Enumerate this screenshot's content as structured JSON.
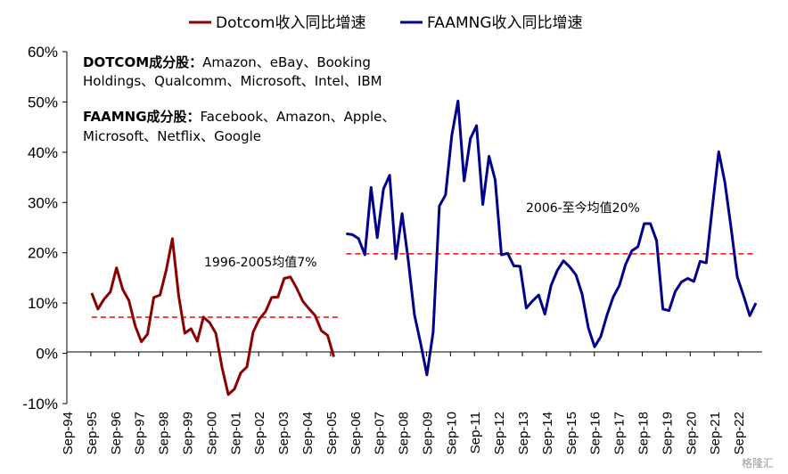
{
  "chart_data": {
    "type": "line",
    "y_ticks": [
      "60%",
      "50%",
      "40%",
      "30%",
      "20%",
      "10%",
      "0%",
      "-10%"
    ],
    "y_tick_values": [
      60,
      50,
      40,
      30,
      20,
      10,
      0,
      -10
    ],
    "ylim": [
      -10,
      60
    ],
    "x_ticks": [
      "Sep-94",
      "Sep-95",
      "Sep-96",
      "Sep-97",
      "Sep-98",
      "Sep-99",
      "Sep-00",
      "Sep-01",
      "Sep-02",
      "Sep-03",
      "Sep-04",
      "Sep-05",
      "Sep-06",
      "Sep-07",
      "Sep-08",
      "Sep-09",
      "Sep-10",
      "Sep-11",
      "Sep-12",
      "Sep-13",
      "Sep-14",
      "Sep-15",
      "Sep-16",
      "Sep-17",
      "Sep-18",
      "Sep-19",
      "Sep-20",
      "Sep-21",
      "Sep-22"
    ],
    "legend": [
      {
        "label": "Dotcom收入同比增速",
        "color": "#8b0000"
      },
      {
        "label": "FAAMNG收入同比增速",
        "color": "#00008b"
      }
    ],
    "series": [
      {
        "name": "Dotcom收入同比增速",
        "color": "#8b0000",
        "x": [
          1995.75,
          1996.0,
          1996.25,
          1996.5,
          1996.75,
          1997.0,
          1997.25,
          1997.5,
          1997.75,
          1998.0,
          1998.25,
          1998.5,
          1998.75,
          1999.0,
          1999.25,
          1999.5,
          1999.75,
          2000.0,
          2000.25,
          2000.5,
          2000.75,
          2001.0,
          2001.25,
          2001.5,
          2001.75,
          2002.0,
          2002.25,
          2002.5,
          2002.75,
          2003.0,
          2003.25,
          2003.5,
          2003.75,
          2004.0,
          2004.25,
          2004.5,
          2004.75,
          2005.0,
          2005.25,
          2005.5,
          2005.75
        ],
        "y": [
          12,
          8.8,
          10.8,
          12.2,
          17,
          12.7,
          10.5,
          5.5,
          2.3,
          3.8,
          11.1,
          11.6,
          16.5,
          22.8,
          11.5,
          4,
          4.9,
          2.4,
          7.2,
          6.1,
          4,
          -2.8,
          -8.2,
          -7.1,
          -3.9,
          -2.7,
          4.2,
          6.8,
          8.3,
          11.1,
          11.2,
          14.9,
          15.2,
          13,
          10.4,
          8.9,
          7.5,
          4.5,
          3.6,
          -0.7,
          null
        ]
      },
      {
        "name": "FAAMNG收入同比增速",
        "color": "#00008b",
        "x": [
          2006.0,
          2006.25,
          2006.5,
          2006.75,
          2007.0,
          2007.25,
          2007.5,
          2007.75,
          2008.0,
          2008.25,
          2008.5,
          2008.75,
          2009.0,
          2009.25,
          2009.5,
          2009.75,
          2010.0,
          2010.25,
          2010.5,
          2010.75,
          2011.0,
          2011.25,
          2011.5,
          2011.75,
          2012.0,
          2012.25,
          2012.5,
          2012.75,
          2013.0,
          2013.25,
          2013.5,
          2013.75,
          2014.0,
          2014.25,
          2014.5,
          2014.75,
          2015.0,
          2015.25,
          2015.5,
          2015.75,
          2016.0,
          2016.25,
          2016.5,
          2016.75,
          2017.0,
          2017.25,
          2017.5,
          2017.75,
          2018.0,
          2018.25,
          2018.5,
          2018.75,
          2019.0,
          2019.25,
          2019.5,
          2019.75,
          2020.0,
          2020.25,
          2020.5,
          2020.75,
          2021.0,
          2021.25,
          2021.5,
          2021.75,
          2022.0,
          2022.25,
          2022.5
        ],
        "y": [
          23.8,
          23.6,
          22.8,
          19.6,
          33,
          23,
          32.7,
          35.4,
          18.8,
          27.8,
          18.5,
          7.6,
          1.9,
          -4.3,
          4.2,
          29.3,
          31.5,
          43.3,
          50.2,
          34.3,
          42.7,
          45.3,
          29.6,
          39.2,
          34.5,
          19.6,
          19.9,
          17.4,
          17.3,
          9,
          10.4,
          11.6,
          7.8,
          13.5,
          16.5,
          18.4,
          17.2,
          15.6,
          11.8,
          5.1,
          1.3,
          3.3,
          7.6,
          11.2,
          13.5,
          17.7,
          20.4,
          21.2,
          25.8,
          25.8,
          22.4,
          8.8,
          8.5,
          12.3,
          14.2,
          14.9,
          14.3,
          18.3,
          18,
          29.3,
          40.1,
          34,
          24.9,
          15.2,
          11.5,
          7.5,
          10
        ]
      }
    ],
    "reference_lines": [
      {
        "label": "1996-2005均值7%",
        "value": 7.2,
        "x_start": 1995.75,
        "x_end": 2005.75,
        "color": "#ff0000"
      },
      {
        "label": "2006-至今均值20%",
        "value": 19.8,
        "x_start": 2006.0,
        "x_end": 2022.5,
        "color": "#ff0000"
      }
    ]
  },
  "notes": {
    "dotcom": {
      "title": "DOTCOM成分股：",
      "line1": "Amazon、eBay、Booking",
      "line2": "Holdings、Qualcomm、Microsoft、Intel、IBM"
    },
    "faamng": {
      "title": "FAAMNG成分股：",
      "line1": "Facebook、Amazon、Apple、",
      "line2": "Microsoft、Netflix、Google"
    }
  },
  "watermark": "格隆汇"
}
